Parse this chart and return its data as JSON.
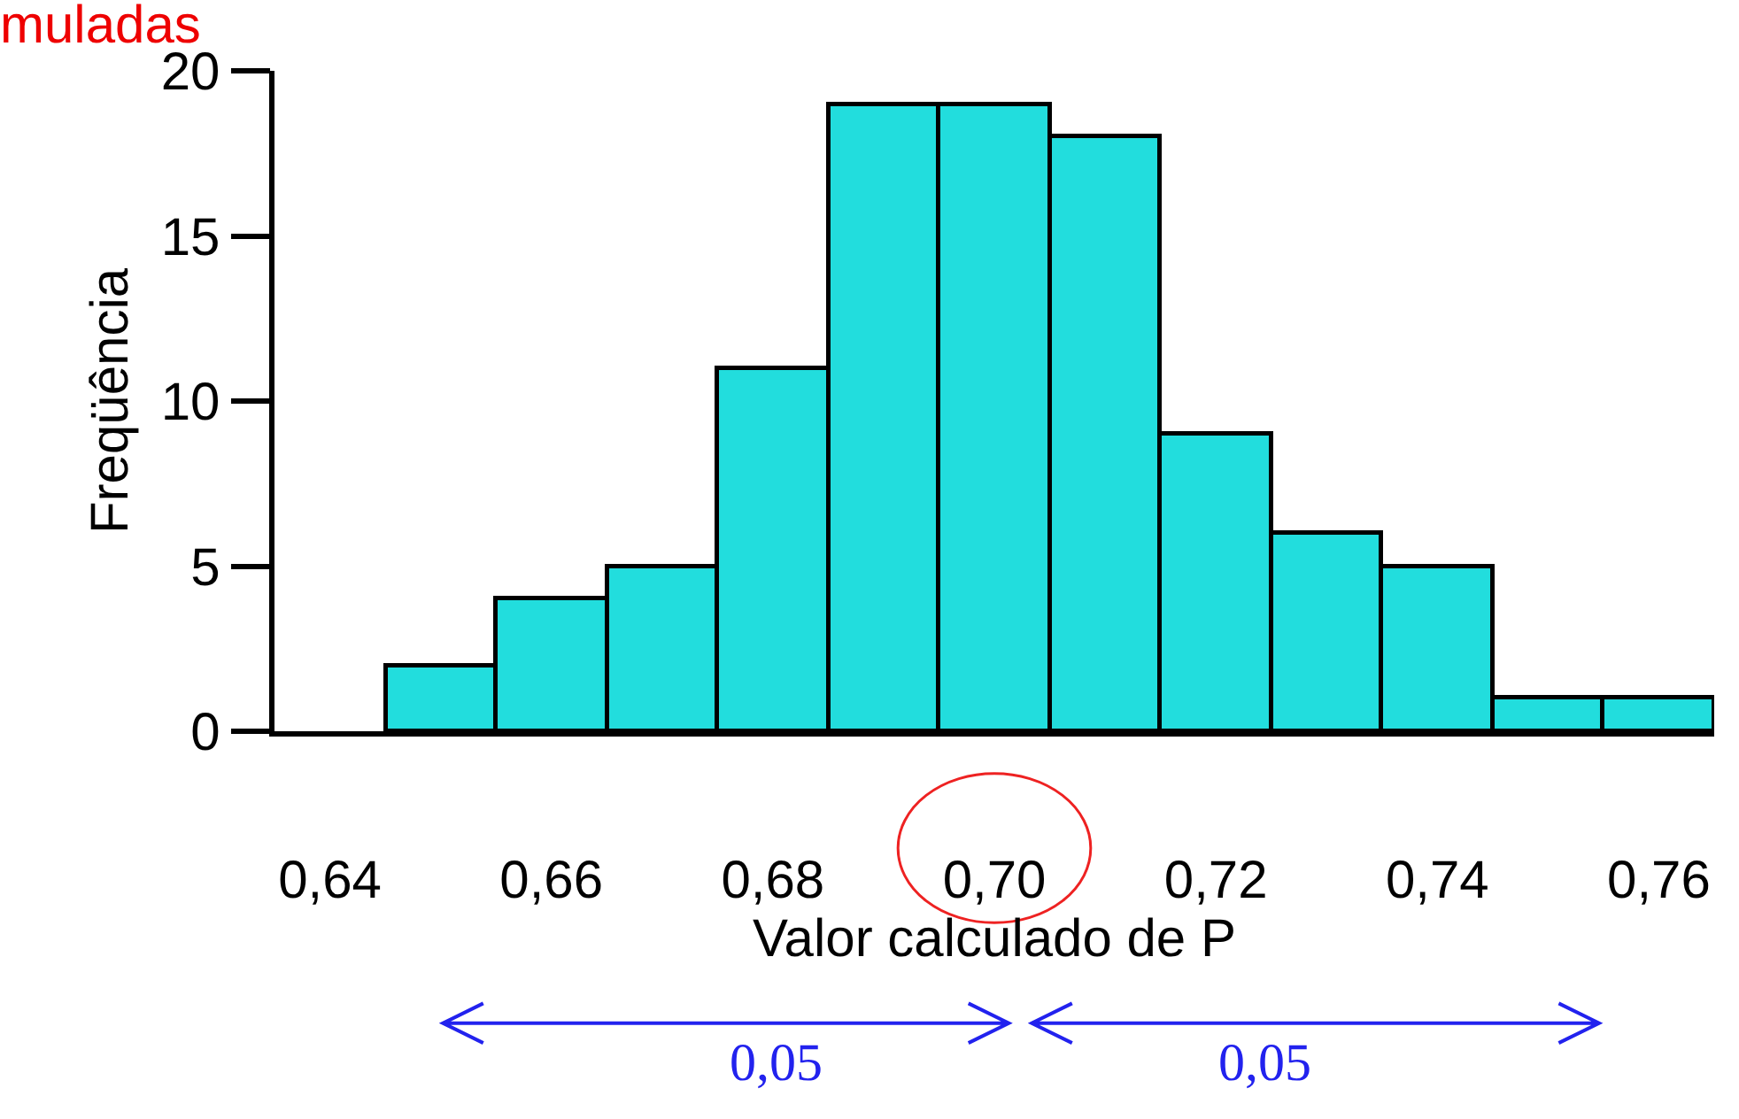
{
  "chart_data": {
    "type": "histogram",
    "title": "muladas",
    "xlabel": "Valor calculado de P",
    "ylabel": "Freqüência",
    "bins": [
      0.645,
      0.655,
      0.665,
      0.675,
      0.685,
      0.695,
      0.705,
      0.715,
      0.725,
      0.735,
      0.745,
      0.755,
      0.765
    ],
    "values": [
      2,
      4,
      5,
      11,
      19,
      19,
      18,
      9,
      6,
      5,
      1,
      1
    ],
    "color": "#22dddd",
    "xlim": [
      0.635,
      0.765
    ],
    "ylim": [
      0,
      20
    ],
    "xticks": [
      {
        "value": 0.64,
        "label": "0,64"
      },
      {
        "value": 0.66,
        "label": "0,66"
      },
      {
        "value": 0.68,
        "label": "0,68"
      },
      {
        "value": 0.7,
        "label": "0,70"
      },
      {
        "value": 0.72,
        "label": "0,72"
      },
      {
        "value": 0.74,
        "label": "0,74"
      },
      {
        "value": 0.76,
        "label": "0,76"
      }
    ],
    "yticks": [
      0,
      5,
      10,
      15,
      20
    ],
    "annotations": [
      "0,05",
      "0,05"
    ]
  }
}
